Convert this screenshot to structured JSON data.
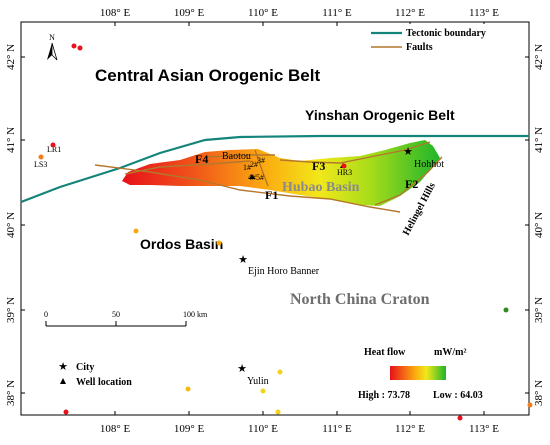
{
  "map": {
    "lon_labels": [
      "108° E",
      "109° E",
      "110° E",
      "111° E",
      "112° E",
      "113° E"
    ],
    "lat_labels": [
      "42° N",
      "41° N",
      "40° N",
      "39° N",
      "38° N"
    ],
    "north_arrow": "N"
  },
  "regions": {
    "caob": "Central Asian Orogenic Belt",
    "yinshan": "Yinshan Orogenic Belt",
    "ordos": "Ordos Basin",
    "ncc": "North China Craton",
    "hubao": "Hubao Basin",
    "helingel": "Helingel Hills"
  },
  "cities": {
    "baotou": "Baotou",
    "hohhot": "Hohhot",
    "ejin": "Ejin Horo Banner",
    "yulin": "Yulin"
  },
  "wells": {
    "lr1": "LR1",
    "ls3": "LS3",
    "hr3": "HR3",
    "w1": "1#",
    "w2": "2#",
    "w3": "3#",
    "w4": "4#",
    "w5": "5#"
  },
  "faults": {
    "f1": "F1",
    "f2": "F2",
    "f3": "F3",
    "f4": "F4"
  },
  "scale_bar": {
    "t0": "0",
    "t50": "50",
    "t100": "100 km"
  },
  "legend": {
    "tectonic": "Tectonic boundary",
    "faults": "Faults",
    "city": "City",
    "well": "Well location",
    "heat_flow": "Heat flow",
    "unit": "mW/m²",
    "high": "High : 73.78",
    "low": "Low : 64.03",
    "tectonic_color": "#14857a",
    "fault_color": "#b4772c"
  }
}
